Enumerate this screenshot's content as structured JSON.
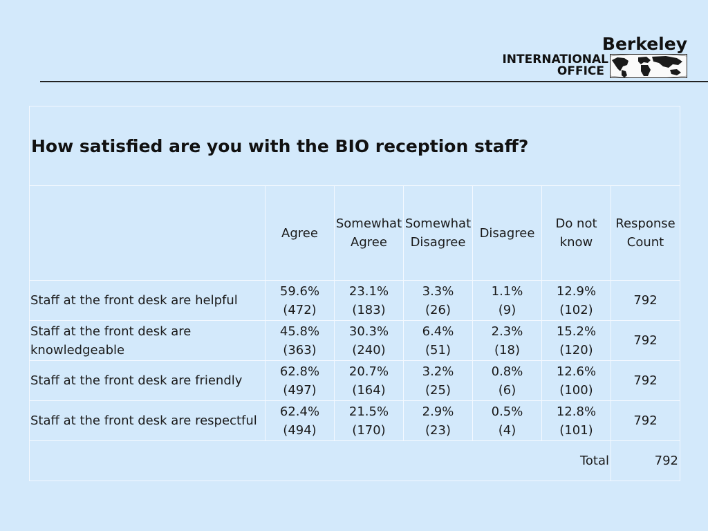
{
  "logo": {
    "name": "Berkeley",
    "line1": "INTERNATIONAL",
    "line2": "OFFICE",
    "image": "world-map-icon"
  },
  "table": {
    "title": "How satisfied are you with the BIO reception staff?",
    "columns": [
      "Agree",
      "Somewhat Agree",
      "Somewhat Disagree",
      "Disagree",
      "Do not know",
      "Response Count"
    ],
    "rows": [
      {
        "label": "Staff at the front desk are helpful",
        "cells": [
          {
            "pct": "59.6%",
            "count": "(472)"
          },
          {
            "pct": "23.1%",
            "count": "(183)"
          },
          {
            "pct": "3.3%",
            "count": "(26)"
          },
          {
            "pct": "1.1%",
            "count": "(9)"
          },
          {
            "pct": "12.9%",
            "count": "(102)"
          }
        ],
        "response_count": "792"
      },
      {
        "label": "Staff at the front desk are knowledgeable",
        "cells": [
          {
            "pct": "45.8%",
            "count": "(363)"
          },
          {
            "pct": "30.3%",
            "count": "(240)"
          },
          {
            "pct": "6.4%",
            "count": "(51)"
          },
          {
            "pct": "2.3%",
            "count": "(18)"
          },
          {
            "pct": "15.2%",
            "count": "(120)"
          }
        ],
        "response_count": "792"
      },
      {
        "label": "Staff at the front desk are friendly",
        "cells": [
          {
            "pct": "62.8%",
            "count": "(497)"
          },
          {
            "pct": "20.7%",
            "count": "(164)"
          },
          {
            "pct": "3.2%",
            "count": "(25)"
          },
          {
            "pct": "0.8%",
            "count": "(6)"
          },
          {
            "pct": "12.6%",
            "count": "(100)"
          }
        ],
        "response_count": "792"
      },
      {
        "label": "Staff at the front desk are respectful",
        "cells": [
          {
            "pct": "62.4%",
            "count": "(494)"
          },
          {
            "pct": "21.5%",
            "count": "(170)"
          },
          {
            "pct": "2.9%",
            "count": "(23)"
          },
          {
            "pct": "0.5%",
            "count": "(4)"
          },
          {
            "pct": "12.8%",
            "count": "(101)"
          }
        ],
        "response_count": "792"
      }
    ],
    "total_label": "Total",
    "total_value": "792"
  }
}
